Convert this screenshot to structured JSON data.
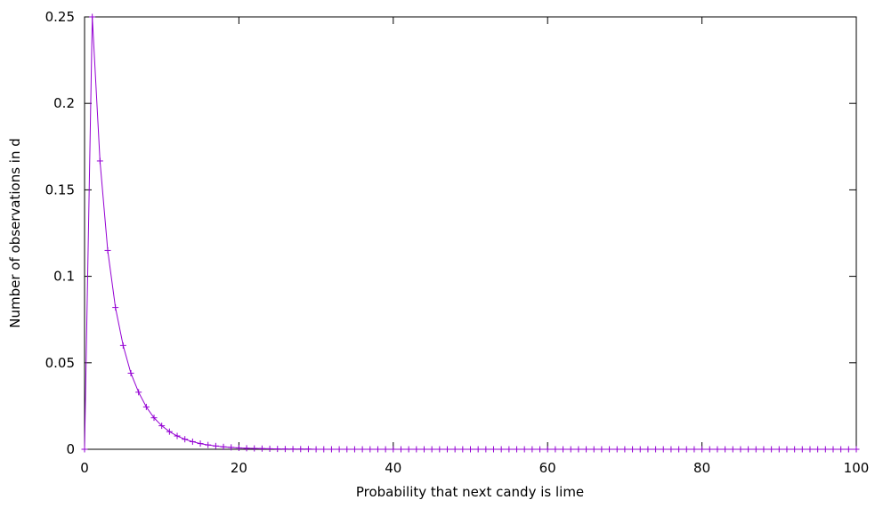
{
  "chart_data": {
    "type": "line",
    "title": "",
    "xlabel": "Probability that next candy is lime",
    "ylabel": "Number of observations in d",
    "xlim": [
      0,
      100
    ],
    "ylim": [
      0,
      0.25
    ],
    "x_ticks": [
      "0",
      "20",
      "40",
      "60",
      "80",
      "100"
    ],
    "y_ticks": [
      "0",
      "0.05",
      "0.1",
      "0.15",
      "0.2",
      "0.25"
    ],
    "grid": false,
    "legend": "none",
    "series_color": "#9400d3",
    "marker": "plus",
    "x": [
      0,
      1,
      2,
      3,
      4,
      5,
      6,
      7,
      8,
      9,
      10,
      11,
      12,
      13,
      14,
      15,
      16,
      17,
      18,
      19,
      20,
      21,
      22,
      23,
      24,
      25,
      26,
      27,
      28,
      29,
      30,
      31,
      32,
      33,
      34,
      35,
      36,
      37,
      38,
      39,
      40,
      41,
      42,
      43,
      44,
      45,
      46,
      47,
      48,
      49,
      50,
      51,
      52,
      53,
      54,
      55,
      56,
      57,
      58,
      59,
      60,
      61,
      62,
      63,
      64,
      65,
      66,
      67,
      68,
      69,
      70,
      71,
      72,
      73,
      74,
      75,
      76,
      77,
      78,
      79,
      80,
      81,
      82,
      83,
      84,
      85,
      86,
      87,
      88,
      89,
      90,
      91,
      92,
      93,
      94,
      95,
      96,
      97,
      98,
      99,
      100
    ],
    "y": [
      0,
      0.25,
      0.1667,
      0.115,
      0.082,
      0.06,
      0.044,
      0.033,
      0.0245,
      0.0182,
      0.0136,
      0.0102,
      0.0077,
      0.0058,
      0.0044,
      0.0033,
      0.0025,
      0.0019,
      0.0014,
      0.0011,
      0.0008,
      0.0006,
      0.0005,
      0.0004,
      0.0003,
      0.0002,
      0.00015,
      0.0001,
      0.0001,
      0.0001,
      0,
      0,
      0,
      0,
      0,
      0,
      0,
      0,
      0,
      0,
      0,
      0,
      0,
      0,
      0,
      0,
      0,
      0,
      0,
      0,
      0,
      0,
      0,
      0,
      0,
      0,
      0,
      0,
      0,
      0,
      0,
      0,
      0,
      0,
      0,
      0,
      0,
      0,
      0,
      0,
      0,
      0,
      0,
      0,
      0,
      0,
      0,
      0,
      0,
      0,
      0,
      0,
      0,
      0,
      0,
      0,
      0,
      0,
      0,
      0,
      0,
      0,
      0,
      0,
      0,
      0,
      0,
      0,
      0,
      0,
      0
    ]
  }
}
